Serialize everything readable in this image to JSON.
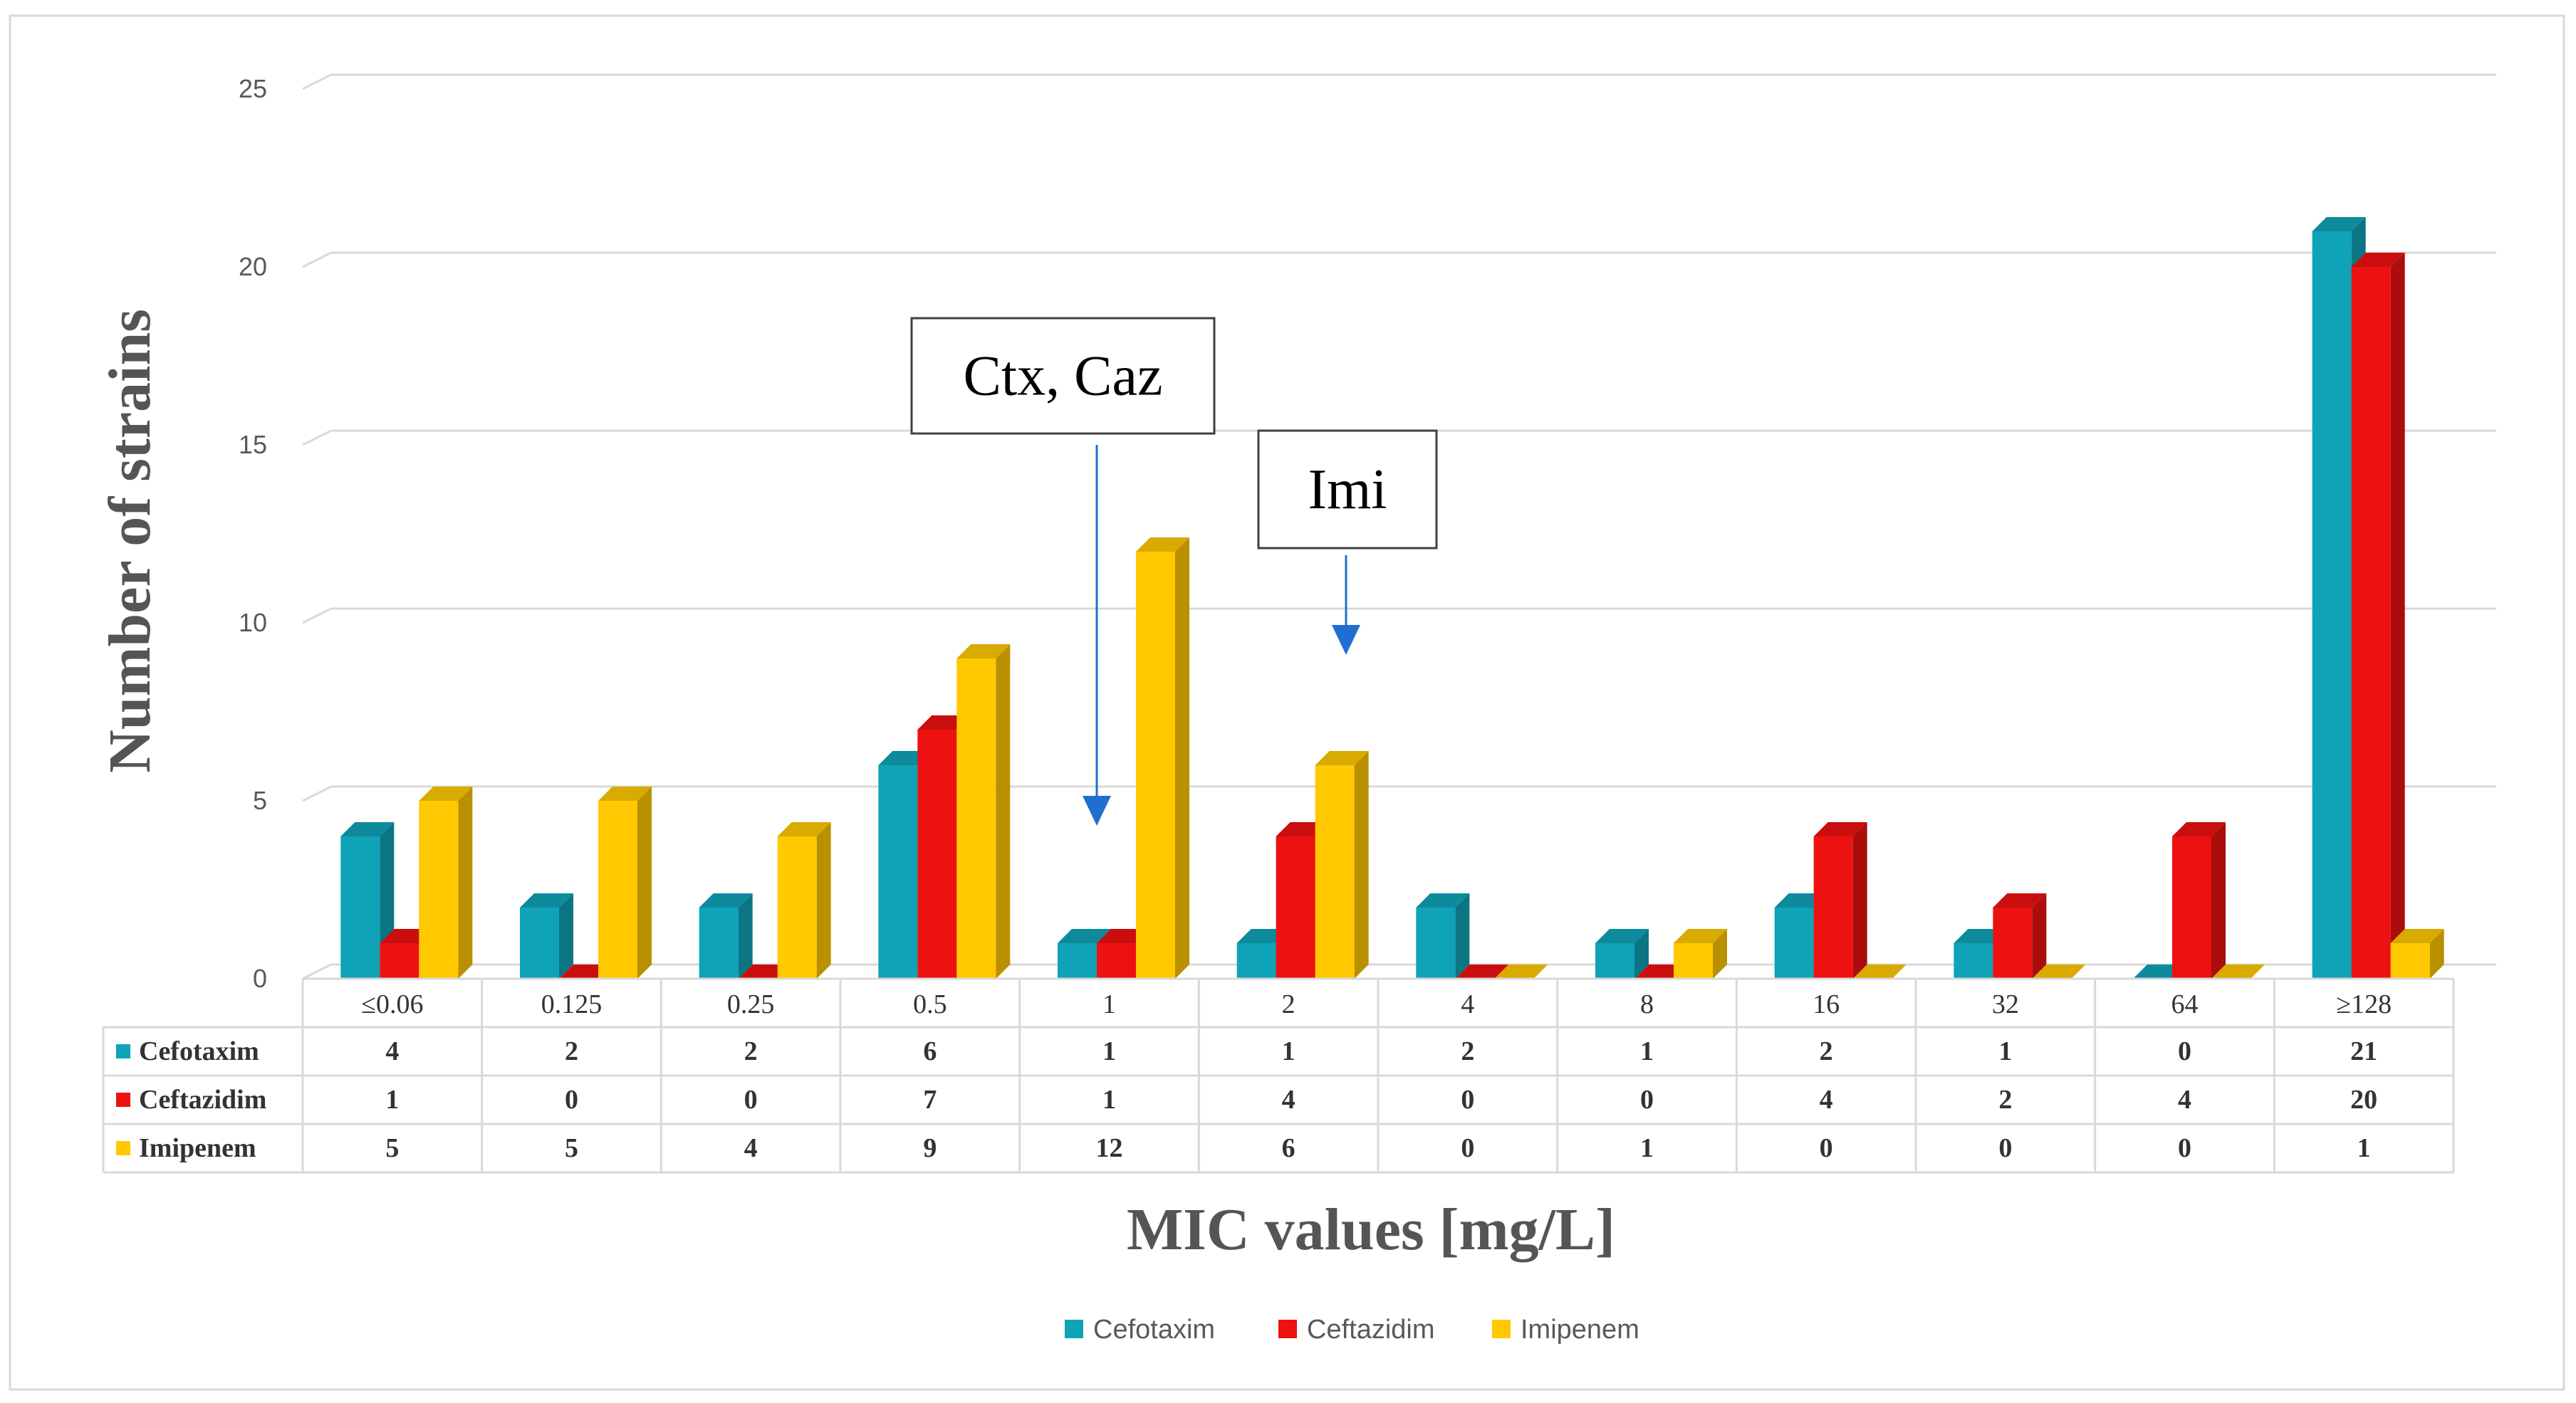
{
  "chart_data": {
    "type": "bar",
    "ylabel": "Number of strains",
    "xlabel": "MIC values [mg/L]",
    "ylim": [
      0,
      25
    ],
    "yticks": [
      0,
      5,
      10,
      15,
      20,
      25
    ],
    "grid": true,
    "legend_position": "bottom-center",
    "categories": [
      "≤0.06",
      "0.125",
      "0.25",
      "0.5",
      "1",
      "2",
      "4",
      "8",
      "16",
      "32",
      "64",
      "≥128"
    ],
    "series": [
      {
        "name": "Cefotaxim",
        "color": "#0fa3b8",
        "values": [
          4,
          2,
          2,
          6,
          1,
          1,
          2,
          1,
          2,
          1,
          0,
          21
        ]
      },
      {
        "name": "Ceftazidim",
        "color": "#ee1111",
        "values": [
          1,
          0,
          0,
          7,
          1,
          4,
          0,
          0,
          4,
          2,
          4,
          20
        ]
      },
      {
        "name": "Imipenem",
        "color": "#ffc800",
        "values": [
          5,
          5,
          4,
          9,
          12,
          6,
          0,
          1,
          0,
          0,
          0,
          1
        ]
      }
    ],
    "annotations": [
      {
        "text": "Ctx, Caz",
        "category": "1"
      },
      {
        "text": "Imi",
        "category": "2"
      }
    ]
  }
}
